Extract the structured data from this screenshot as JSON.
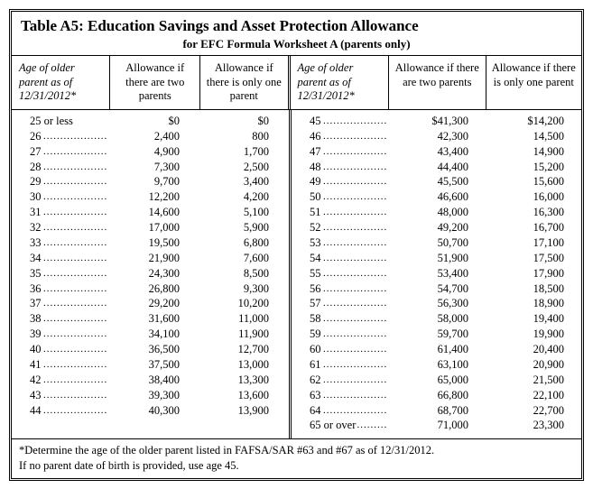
{
  "title": "Table A5:  Education Savings and Asset Protection Allowance",
  "subtitle": "for EFC Formula Worksheet A (parents only)",
  "headers": {
    "age": "Age of older parent as of 12/31/2012*",
    "two": "Allowance if there are two parents",
    "one": "Allowance if there is only one parent"
  },
  "left": [
    {
      "age": "25 or less",
      "two": "$0",
      "one": "$0",
      "noleader": true
    },
    {
      "age": "26",
      "two": "2,400",
      "one": "800"
    },
    {
      "age": "27",
      "two": "4,900",
      "one": "1,700"
    },
    {
      "age": "28",
      "two": "7,300",
      "one": "2,500"
    },
    {
      "age": "29",
      "two": "9,700",
      "one": "3,400"
    },
    {
      "age": "30",
      "two": "12,200",
      "one": "4,200"
    },
    {
      "age": "31",
      "two": "14,600",
      "one": "5,100"
    },
    {
      "age": "32",
      "two": "17,000",
      "one": "5,900"
    },
    {
      "age": "33",
      "two": "19,500",
      "one": "6,800"
    },
    {
      "age": "34",
      "two": "21,900",
      "one": "7,600"
    },
    {
      "age": "35",
      "two": "24,300",
      "one": "8,500"
    },
    {
      "age": "36",
      "two": "26,800",
      "one": "9,300"
    },
    {
      "age": "37",
      "two": "29,200",
      "one": "10,200"
    },
    {
      "age": "38",
      "two": "31,600",
      "one": "11,000"
    },
    {
      "age": "39",
      "two": "34,100",
      "one": "11,900"
    },
    {
      "age": "40",
      "two": "36,500",
      "one": "12,700"
    },
    {
      "age": "41",
      "two": "37,500",
      "one": "13,000"
    },
    {
      "age": "42",
      "two": "38,400",
      "one": "13,300"
    },
    {
      "age": "43",
      "two": "39,300",
      "one": "13,600"
    },
    {
      "age": "44",
      "two": "40,300",
      "one": "13,900"
    }
  ],
  "right": [
    {
      "age": "45",
      "two": "$41,300",
      "one": "$14,200"
    },
    {
      "age": "46",
      "two": "42,300",
      "one": "14,500"
    },
    {
      "age": "47",
      "two": "43,400",
      "one": "14,900"
    },
    {
      "age": "48",
      "two": "44,400",
      "one": "15,200"
    },
    {
      "age": "49",
      "two": "45,500",
      "one": "15,600"
    },
    {
      "age": "50",
      "two": "46,600",
      "one": "16,000"
    },
    {
      "age": "51",
      "two": "48,000",
      "one": "16,300"
    },
    {
      "age": "52",
      "two": "49,200",
      "one": "16,700"
    },
    {
      "age": "53",
      "two": "50,700",
      "one": "17,100"
    },
    {
      "age": "54",
      "two": "51,900",
      "one": "17,500"
    },
    {
      "age": "55",
      "two": "53,400",
      "one": "17,900"
    },
    {
      "age": "56",
      "two": "54,700",
      "one": "18,500"
    },
    {
      "age": "57",
      "two": "56,300",
      "one": "18,900"
    },
    {
      "age": "58",
      "two": "58,000",
      "one": "19,400"
    },
    {
      "age": "59",
      "two": "59,700",
      "one": "19,900"
    },
    {
      "age": "60",
      "two": "61,400",
      "one": "20,400"
    },
    {
      "age": "61",
      "two": "63,100",
      "one": "20,900"
    },
    {
      "age": "62",
      "two": "65,000",
      "one": "21,500"
    },
    {
      "age": "63",
      "two": "66,800",
      "one": "22,100"
    },
    {
      "age": "64",
      "two": "68,700",
      "one": "22,700"
    },
    {
      "age": "65 or over",
      "two": "71,000",
      "one": "23,300"
    }
  ],
  "footnote_l1": "*Determine the age of the older parent listed in FAFSA/SAR #63 and #67 as of 12/31/2012.",
  "footnote_l2": "If no parent date of birth is provided, use age 45."
}
